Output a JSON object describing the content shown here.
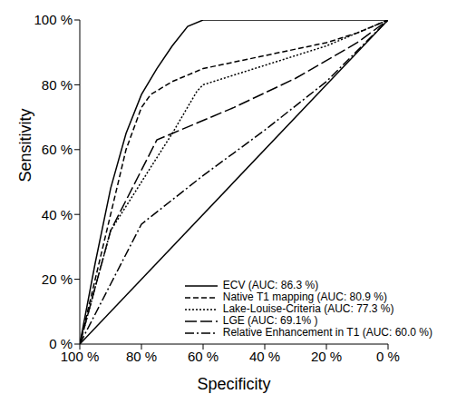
{
  "chart_data": {
    "type": "line",
    "x_label": "Specificity",
    "y_label": "Sensitivity",
    "xlim": [
      100,
      0
    ],
    "ylim": [
      0,
      100
    ],
    "xticks": [
      {
        "value": 100,
        "label": "100 %"
      },
      {
        "value": 80,
        "label": "80 %"
      },
      {
        "value": 60,
        "label": "60 %"
      },
      {
        "value": 40,
        "label": "40 %"
      },
      {
        "value": 20,
        "label": "20 %"
      },
      {
        "value": 0,
        "label": "0 %"
      }
    ],
    "yticks": [
      {
        "value": 0,
        "label": "0 %"
      },
      {
        "value": 20,
        "label": "20 %"
      },
      {
        "value": 40,
        "label": "40 %"
      },
      {
        "value": 60,
        "label": "60 %"
      },
      {
        "value": 80,
        "label": "80 %"
      },
      {
        "value": 100,
        "label": "100 %"
      }
    ],
    "legend": "bottom-right",
    "grid": false,
    "diagonal": {
      "x": [
        100,
        0
      ],
      "values": [
        0,
        100
      ],
      "color": "#000000",
      "line_style": "solid"
    },
    "series": [
      {
        "name": "ECV (AUC: 86.3 %)",
        "color": "#000000",
        "line_style": "solid",
        "x": [
          100,
          95,
          90,
          85,
          80,
          75,
          70,
          65,
          60,
          55,
          0
        ],
        "values": [
          0,
          25,
          48,
          65,
          77,
          85,
          92,
          98,
          100,
          100,
          100
        ]
      },
      {
        "name": "Native T1 mapping (AUC: 80.9 %)",
        "color": "#000000",
        "line_style": "dashed",
        "x": [
          100,
          90,
          85,
          80,
          77,
          70,
          60,
          50,
          40,
          30,
          20,
          10,
          0
        ],
        "values": [
          0,
          40,
          60,
          73,
          77,
          81,
          85,
          87,
          89,
          91,
          93,
          96,
          100
        ]
      },
      {
        "name": "Lake-Louise-Criteria (AUC: 77.3 %)",
        "color": "#000000",
        "line_style": "dotted",
        "x": [
          100,
          90,
          80,
          70,
          62,
          60,
          40,
          20,
          0
        ],
        "values": [
          0,
          35,
          50,
          65,
          78,
          80,
          86,
          92,
          100
        ]
      },
      {
        "name": "LGE (AUC: 69.1% )",
        "color": "#000000",
        "line_style": "longdash",
        "x": [
          100,
          90,
          75,
          70,
          50,
          30,
          10,
          0
        ],
        "values": [
          0,
          35,
          63,
          65,
          73,
          82,
          93,
          100
        ]
      },
      {
        "name": "Relative Enhancement in T1 (AUC: 60.0 %)",
        "color": "#000000",
        "line_style": "dashdot",
        "x": [
          100,
          80,
          60,
          40,
          20,
          0
        ],
        "values": [
          0,
          37,
          52,
          66,
          81,
          100
        ]
      }
    ]
  }
}
